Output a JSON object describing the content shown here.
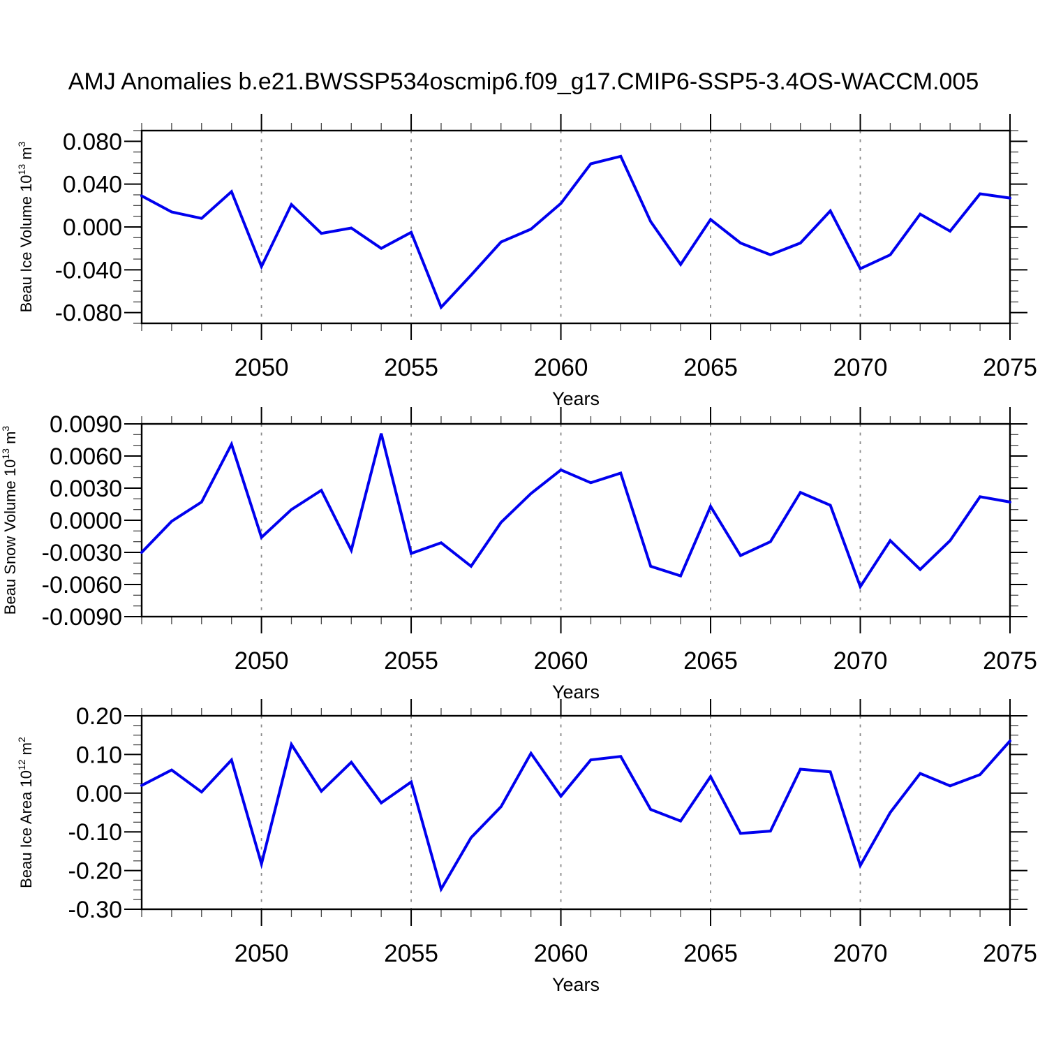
{
  "title": "AMJ Anomalies b.e21.BWSSP534oscmip6.f09_g17.CMIP6-SSP5-3.4OS-WACCM.005",
  "colors": {
    "line": "#0000EE",
    "grid": "#8a8a8a",
    "axis": "#000000",
    "minor_tick": "#444444",
    "background": "#ffffff"
  },
  "chart_data": {
    "type": "line",
    "title": "AMJ Anomalies b.e21.BWSSP534oscmip6.f09_g17.CMIP6-SSP5-3.4OS-WACCM.005",
    "xlabel": "Years",
    "xlim": [
      2046,
      2075
    ],
    "x": [
      2046,
      2047,
      2048,
      2049,
      2050,
      2051,
      2052,
      2053,
      2054,
      2055,
      2056,
      2057,
      2058,
      2059,
      2060,
      2061,
      2062,
      2063,
      2064,
      2065,
      2066,
      2067,
      2068,
      2069,
      2070,
      2071,
      2072,
      2073,
      2074,
      2075
    ],
    "xticks": {
      "values": [
        2050,
        2055,
        2060,
        2065,
        2070,
        2075
      ],
      "labels": [
        "2050",
        "2055",
        "2060",
        "2065",
        "2070",
        "2075"
      ],
      "minor_step": 1
    },
    "grid_x": [
      2050,
      2055,
      2060,
      2065,
      2070
    ],
    "legend": "none",
    "grid": "vertical-dashed",
    "panels": [
      {
        "id": "ice-volume",
        "ylabel_parts": [
          {
            "t": "Beau Ice Volume 10"
          },
          {
            "t": "13",
            "sup": true
          },
          {
            "t": " m"
          },
          {
            "t": "3",
            "sup": true
          }
        ],
        "ylabel_plain": "Beau Ice Volume 10^13 m^3",
        "ylim": [
          -0.09,
          0.09
        ],
        "yticks": {
          "values": [
            0.08,
            0.04,
            0.0,
            -0.04,
            -0.08
          ],
          "labels": [
            "0.080",
            "0.040",
            "0.000",
            "-0.040",
            "-0.080"
          ]
        },
        "yminor_step": 0.01,
        "values": [
          0.029,
          0.014,
          0.008,
          0.033,
          -0.037,
          0.021,
          -0.006,
          -0.001,
          -0.02,
          -0.005,
          -0.075,
          -0.045,
          -0.014,
          -0.002,
          0.022,
          0.059,
          0.066,
          0.005,
          -0.035,
          0.007,
          -0.015,
          -0.026,
          -0.015,
          0.015,
          -0.039,
          -0.026,
          0.012,
          -0.004,
          0.031,
          0.027
        ]
      },
      {
        "id": "snow-volume",
        "ylabel_parts": [
          {
            "t": "Beau Snow Volume 10"
          },
          {
            "t": "13",
            "sup": true
          },
          {
            "t": " m"
          },
          {
            "t": "3",
            "sup": true
          }
        ],
        "ylabel_plain": "Beau Snow Volume 10^13 m^3",
        "ylim": [
          -0.009,
          0.009
        ],
        "yticks": {
          "values": [
            0.009,
            0.006,
            0.003,
            0.0,
            -0.003,
            -0.006,
            -0.009
          ],
          "labels": [
            "0.0090",
            "0.0060",
            "0.0030",
            "0.0000",
            "-0.0030",
            "-0.0060",
            "-0.0090"
          ]
        },
        "yminor_step": 0.001,
        "values": [
          -0.003,
          -0.0001,
          0.0017,
          0.0071,
          -0.0016,
          0.001,
          0.0028,
          -0.0028,
          0.0081,
          -0.0031,
          -0.0021,
          -0.0043,
          -0.0002,
          0.0025,
          0.0047,
          0.0035,
          0.0044,
          -0.0043,
          -0.0052,
          0.0013,
          -0.0033,
          -0.002,
          0.0026,
          0.0014,
          -0.0062,
          -0.0019,
          -0.0046,
          -0.0019,
          0.0022,
          0.0017
        ]
      },
      {
        "id": "ice-area",
        "ylabel_parts": [
          {
            "t": "Beau Ice Area 10"
          },
          {
            "t": "12",
            "sup": true
          },
          {
            "t": " m"
          },
          {
            "t": "2",
            "sup": true
          }
        ],
        "ylabel_plain": "Beau Ice Area 10^12 m^2",
        "ylim": [
          -0.3,
          0.2
        ],
        "yticks": {
          "values": [
            0.2,
            0.1,
            0.0,
            -0.1,
            -0.2,
            -0.3
          ],
          "labels": [
            "0.20",
            "0.10",
            "0.00",
            "-0.10",
            "-0.20",
            "-0.30"
          ]
        },
        "yminor_step": 0.025,
        "values": [
          0.02,
          0.06,
          0.003,
          0.086,
          -0.183,
          0.126,
          0.005,
          0.08,
          -0.025,
          0.029,
          -0.248,
          -0.115,
          -0.035,
          0.103,
          -0.008,
          0.086,
          0.095,
          -0.042,
          -0.072,
          0.043,
          -0.104,
          -0.098,
          0.062,
          0.055,
          -0.187,
          -0.05,
          0.051,
          0.019,
          0.048,
          0.135
        ]
      }
    ]
  }
}
